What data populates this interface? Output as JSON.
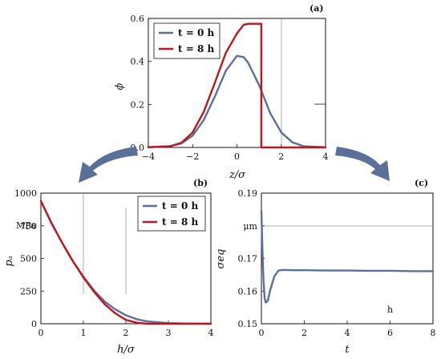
{
  "colors": {
    "blue": "#5b6f9a",
    "red": "#c0151d",
    "arrow": "#5b7099",
    "grey": "#888888"
  },
  "labels": {
    "panel_a": "(a)",
    "panel_b": "(b)",
    "panel_c": "(c)",
    "legend_t0": "t = 0 h",
    "legend_t8": "t = 8 h",
    "a_xlabel": "z/σ",
    "a_ylabel": "ϕ",
    "b_xlabel": "h/σ",
    "b_ylabel": "pₐ",
    "b_unit": "MPa",
    "c_xlabel": "t",
    "c_ylabel": "σeq",
    "c_unit_y": "μm",
    "c_unit_x": "h"
  },
  "chart_data": [
    {
      "type": "line",
      "panel": "a",
      "xlabel": "z/σ",
      "ylabel": "ϕ",
      "xlim": [
        -4,
        4
      ],
      "ylim": [
        0,
        0.6
      ],
      "xticks": [
        "−4",
        "−2",
        "0",
        "2",
        "4"
      ],
      "yticks": [
        "0.0",
        "0.2",
        "0.4",
        "0.6"
      ],
      "x": [
        -4,
        -3,
        -2.5,
        -2,
        -1.5,
        -1,
        -0.5,
        0,
        0.3,
        0.5,
        1,
        1.5,
        2,
        2.5,
        3,
        4
      ],
      "series": [
        {
          "name": "t = 0 h",
          "values": [
            0.001,
            0.006,
            0.019,
            0.055,
            0.127,
            0.236,
            0.357,
            0.426,
            0.42,
            0.395,
            0.29,
            0.16,
            0.07,
            0.024,
            0.006,
            0.001
          ]
        },
        {
          "name": "t = 8 h",
          "values": [
            0.001,
            0.006,
            0.022,
            0.07,
            0.165,
            0.3,
            0.44,
            0.53,
            0.57,
            0.575,
            0.575,
            0,
            0,
            0,
            0,
            0
          ]
        }
      ],
      "legend": "top-left"
    },
    {
      "type": "line",
      "panel": "b",
      "xlabel": "h/σ",
      "ylabel": "pₐ",
      "yunit": "MPa",
      "xlim": [
        0,
        4
      ],
      "ylim": [
        0,
        1000
      ],
      "xticks": [
        "0",
        "1",
        "2",
        "3",
        "4"
      ],
      "yticks": [
        "0",
        "250",
        "500",
        "750",
        "1000"
      ],
      "x": [
        0,
        0.25,
        0.5,
        0.75,
        1,
        1.25,
        1.5,
        1.75,
        2,
        2.25,
        2.5,
        3,
        3.5,
        4
      ],
      "series": [
        {
          "name": "t = 0 h",
          "values": [
            940,
            770,
            620,
            480,
            360,
            255,
            170,
            110,
            65,
            35,
            18,
            5,
            1,
            0
          ]
        },
        {
          "name": "t = 8 h",
          "values": [
            940,
            770,
            620,
            480,
            355,
            245,
            150,
            80,
            30,
            8,
            0,
            0,
            0,
            0
          ]
        }
      ],
      "legend": "top-right"
    },
    {
      "type": "line",
      "panel": "c",
      "xlabel": "t",
      "ylabel": "σeq",
      "yunit": "μm",
      "xunit": "h",
      "xlim": [
        0,
        8
      ],
      "ylim": [
        0.15,
        0.19
      ],
      "xticks": [
        "0",
        "2",
        "4",
        "6",
        "8"
      ],
      "yticks": [
        "0.15",
        "0.16",
        "0.17",
        "0.18",
        "0.19"
      ],
      "x": [
        0,
        0.05,
        0.1,
        0.15,
        0.2,
        0.3,
        0.4,
        0.6,
        0.8,
        1,
        1.5,
        2,
        3,
        4,
        5,
        6,
        7,
        8
      ],
      "series": [
        {
          "name": "t = 0 h",
          "values": [
            0.1845,
            0.172,
            0.163,
            0.158,
            0.1565,
            0.157,
            0.16,
            0.1645,
            0.1663,
            0.1665,
            0.1664,
            0.1664,
            0.1663,
            0.1663,
            0.1662,
            0.1662,
            0.1661,
            0.1661
          ]
        }
      ]
    }
  ]
}
